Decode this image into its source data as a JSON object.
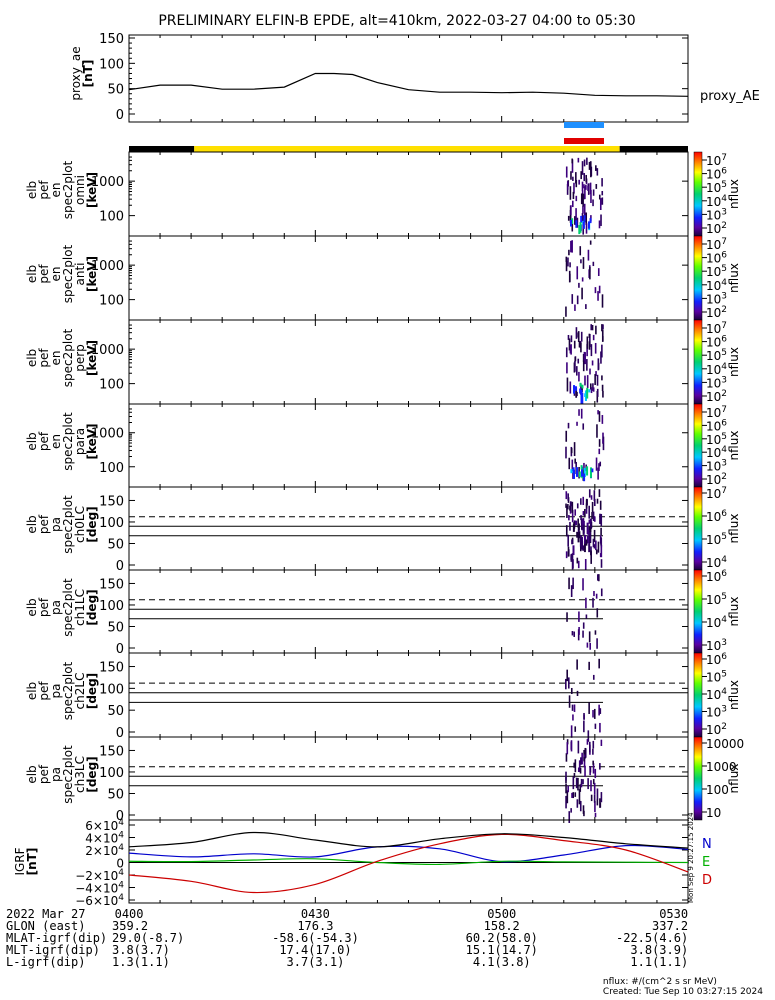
{
  "title": "PRELIMINARY ELFIN-B EPDE, alt=410km, 2022-03-27 04:00 to 05:30",
  "chart_data": [
    {
      "type": "line",
      "id": "proxy_ae",
      "ylabel": "proxy_ae [nT]",
      "ylabel_lines": [
        "proxy_ae",
        "[nT]"
      ],
      "legend": "proxy_AE",
      "ylim": [
        0,
        150
      ],
      "yticks": [
        "0",
        "50",
        "100",
        "150"
      ],
      "x_minutes": [
        0,
        5,
        10,
        15,
        20,
        25,
        30,
        33,
        36,
        40,
        45,
        50,
        55,
        60,
        65,
        70,
        75,
        80,
        85,
        90
      ],
      "values": [
        48,
        57,
        57,
        49,
        49,
        53,
        80,
        80,
        78,
        62,
        48,
        43,
        43,
        42,
        43,
        41,
        37,
        36,
        36,
        35
      ]
    },
    {
      "type": "heatmap",
      "id": "spec-omni",
      "ylabel_lines": [
        "elb",
        "pef",
        "en",
        "spec2plot",
        "omni",
        "[keV]"
      ],
      "yscale": "log",
      "yticks": [
        "100",
        "1000"
      ],
      "colorbar_label": "nflux",
      "colorbar_ticks": [
        "10^7",
        "10^6",
        "10^5",
        "10^4",
        "10^3",
        "10^2"
      ]
    },
    {
      "type": "heatmap",
      "id": "spec-anti",
      "ylabel_lines": [
        "elb",
        "pef",
        "en",
        "spec2plot",
        "anti",
        "[keV]"
      ],
      "yscale": "log",
      "yticks": [
        "100",
        "1000"
      ],
      "colorbar_label": "nflux",
      "colorbar_ticks": [
        "10^7",
        "10^6",
        "10^5",
        "10^4",
        "10^3",
        "10^2"
      ]
    },
    {
      "type": "heatmap",
      "id": "spec-perp",
      "ylabel_lines": [
        "elb",
        "pef",
        "en",
        "spec2plot",
        "perp",
        "[keV]"
      ],
      "yscale": "log",
      "yticks": [
        "100",
        "1000"
      ],
      "colorbar_label": "nflux",
      "colorbar_ticks": [
        "10^7",
        "10^6",
        "10^5",
        "10^4",
        "10^3",
        "10^2"
      ]
    },
    {
      "type": "heatmap",
      "id": "spec-para",
      "ylabel_lines": [
        "elb",
        "pef",
        "en",
        "spec2plot",
        "para",
        "[keV]"
      ],
      "yscale": "log",
      "yticks": [
        "100",
        "1000"
      ],
      "colorbar_label": "nflux",
      "colorbar_ticks": [
        "10^7",
        "10^6",
        "10^5",
        "10^4",
        "10^3",
        "10^2"
      ]
    },
    {
      "type": "heatmap",
      "id": "pa-ch0",
      "ylabel_lines": [
        "elb",
        "pef",
        "pa",
        "spec2plot",
        "ch0LC",
        "[deg]"
      ],
      "ylim": [
        0,
        180
      ],
      "yticks": [
        "0",
        "50",
        "100",
        "150"
      ],
      "colorbar_label": "nflux",
      "colorbar_ticks": [
        "10^7",
        "10^6",
        "10^5",
        "10^4"
      ]
    },
    {
      "type": "heatmap",
      "id": "pa-ch1",
      "ylabel_lines": [
        "elb",
        "pef",
        "pa",
        "spec2plot",
        "ch1LC",
        "[deg]"
      ],
      "ylim": [
        0,
        180
      ],
      "yticks": [
        "0",
        "50",
        "100",
        "150"
      ],
      "colorbar_label": "nflux",
      "colorbar_ticks": [
        "10^6",
        "10^5",
        "10^4",
        "10^3"
      ]
    },
    {
      "type": "heatmap",
      "id": "pa-ch2",
      "ylabel_lines": [
        "elb",
        "pef",
        "pa",
        "spec2plot",
        "ch2LC",
        "[deg]"
      ],
      "ylim": [
        0,
        180
      ],
      "yticks": [
        "0",
        "50",
        "100",
        "150"
      ],
      "colorbar_label": "nflux",
      "colorbar_ticks": [
        "10^6",
        "10^5",
        "10^4",
        "10^3",
        "10^2"
      ]
    },
    {
      "type": "heatmap",
      "id": "pa-ch3",
      "ylabel_lines": [
        "elb",
        "pef",
        "pa",
        "spec2plot",
        "ch3LC",
        "[deg]"
      ],
      "ylim": [
        0,
        180
      ],
      "yticks": [
        "0",
        "50",
        "100",
        "150"
      ],
      "colorbar_label": "nflux",
      "colorbar_ticks": [
        "10000",
        "1000",
        "100",
        "10"
      ]
    },
    {
      "type": "line",
      "id": "bfield",
      "ylabel_lines": [
        "IGRF",
        "[nT]"
      ],
      "ylim": [
        -60000,
        60000
      ],
      "yticks": [
        "6×10^4",
        "4×10^4",
        "2×10^4",
        "0",
        "−2×10^4",
        "−4×10^4",
        "−6×10^4"
      ],
      "legend": [
        "N",
        "E",
        "D"
      ],
      "x_minutes": [
        0,
        10,
        20,
        30,
        40,
        50,
        60,
        70,
        80,
        90
      ],
      "series": [
        {
          "name": "N",
          "color": "#0000cc",
          "values": [
            15000,
            9000,
            14000,
            9000,
            25000,
            22000,
            1500,
            12000,
            27000,
            21000
          ]
        },
        {
          "name": "E",
          "color": "#00b000",
          "values": [
            2000,
            1500,
            4000,
            6000,
            0,
            -3000,
            2000,
            1000,
            500,
            0
          ]
        },
        {
          "name": "D",
          "color": "#cc0000",
          "values": [
            -20000,
            -30000,
            -48000,
            -35000,
            2000,
            30000,
            45000,
            35000,
            20000,
            -15000
          ]
        },
        {
          "color": "#000000",
          "values": [
            25000,
            32000,
            48000,
            36000,
            25000,
            38000,
            46000,
            40000,
            30000,
            23000
          ]
        }
      ]
    }
  ],
  "time_axis": {
    "labels": [
      "0400",
      "0430",
      "0500",
      "0530"
    ]
  },
  "orbit_bar": {
    "colors": {
      "night": "#000000",
      "day": "#ffe000"
    }
  },
  "lc_lines": {
    "dashed_deg": 112,
    "solid_deg": 90
  },
  "science_zone_markers": [
    {
      "color": "#1e90ff"
    },
    {
      "color": "#e00000"
    }
  ],
  "footer": {
    "rows": [
      {
        "label": "2022 Mar 27",
        "values": [
          "0400",
          "0430",
          "0500",
          "0530"
        ]
      },
      {
        "label": "GLON (east)",
        "values": [
          "359.2",
          "176.3",
          "158.2",
          "337.2"
        ]
      },
      {
        "label": "MLAT-igrf(dip)",
        "values": [
          "29.0(-8.7)",
          "-58.6(-54.3)",
          "60.2(58.0)",
          "-22.5(4.6)"
        ]
      },
      {
        "label": "MLT-igrf(dip)",
        "values": [
          "3.8(3.7)",
          "17.4(17.0)",
          "15.1(14.7)",
          "3.8(3.9)"
        ]
      },
      {
        "label": "L-igrf(dip)",
        "values": [
          "1.3(1.1)",
          "3.7(3.1)",
          "4.1(3.8)",
          "1.1(1.1)"
        ]
      }
    ],
    "units_note": "nflux: #/(cm^2 s sr MeV)",
    "created_note": "Created: Tue Sep 10 03:27:15 2024",
    "side_stamp": "Mon Sep 9 20:27:15 2024"
  }
}
